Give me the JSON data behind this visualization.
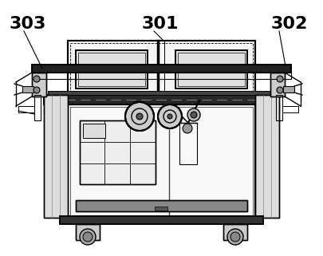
{
  "bg_color": "#ffffff",
  "line_color": "#000000",
  "label_303": "303",
  "label_301": "301",
  "label_302": "302",
  "fig_width": 4.05,
  "fig_height": 3.21,
  "dpi": 100
}
